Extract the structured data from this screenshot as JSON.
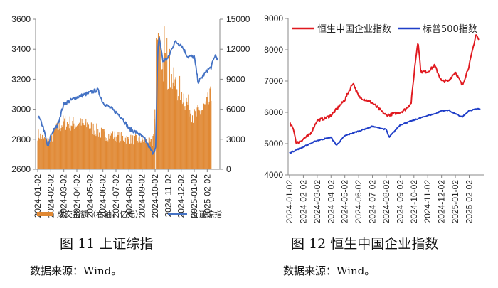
{
  "figures": [
    {
      "caption": "图 11 上证综指",
      "source": "数据来源：Wind。"
    },
    {
      "caption": "图 12 恒生中国企业指数",
      "source": "数据来源：Wind。"
    }
  ],
  "colors": {
    "bar": "#E08833",
    "blue": "#4472C4",
    "red": "#E0191F",
    "blue2": "#1F3EC8"
  },
  "chart_data": [
    {
      "type": "bar+line",
      "x_ticks": [
        "2024-01-02",
        "2024-02-02",
        "2024-03-02",
        "2024-04-02",
        "2024-05-02",
        "2024-06-02",
        "2024-07-02",
        "2024-08-02",
        "2024-09-02",
        "2024-10-02",
        "2024-11-02",
        "2024-12-02",
        "2025-01-02",
        "2025-02-02"
      ],
      "y_left": {
        "ticks": [
          "2600",
          "2800",
          "3000",
          "3200",
          "3400",
          "3600"
        ],
        "range": [
          2600,
          3600
        ]
      },
      "y_right": {
        "ticks": [
          "0",
          "3000",
          "6000",
          "9000",
          "12000",
          "15000"
        ],
        "range": [
          0,
          15000
        ]
      },
      "series": [
        {
          "name": "成交金额（右轴，亿元）",
          "kind": "bar",
          "axis": "right",
          "keypoints": [
            [
              0,
              3500
            ],
            [
              0.5,
              3000
            ],
            [
              1,
              2800
            ],
            [
              1.3,
              3800
            ],
            [
              2,
              4700
            ],
            [
              3,
              4500
            ],
            [
              4,
              4300
            ],
            [
              5,
              3500
            ],
            [
              6,
              3300
            ],
            [
              7,
              3000
            ],
            [
              8,
              2900
            ],
            [
              8.8,
              2600
            ],
            [
              9.05,
              7000
            ],
            [
              9.15,
              13500
            ],
            [
              9.6,
              10500
            ],
            [
              10,
              9500
            ],
            [
              10.5,
              8500
            ],
            [
              11,
              7800
            ],
            [
              11.5,
              6500
            ],
            [
              12,
              5200
            ],
            [
              13,
              6400
            ],
            [
              13.3,
              7200
            ]
          ]
        },
        {
          "name": "上证综指",
          "kind": "line",
          "axis": "left",
          "keypoints": [
            [
              0,
              2960
            ],
            [
              0.4,
              2885
            ],
            [
              0.8,
              2740
            ],
            [
              1,
              2830
            ],
            [
              1.5,
              2890
            ],
            [
              2,
              3035
            ],
            [
              3,
              3080
            ],
            [
              4,
              3110
            ],
            [
              4.6,
              3130
            ],
            [
              5,
              3045
            ],
            [
              6,
              2980
            ],
            [
              6.5,
              2940
            ],
            [
              7,
              2870
            ],
            [
              7.7,
              2840
            ],
            [
              8.2,
              2800
            ],
            [
              8.8,
              2710
            ],
            [
              9.05,
              2740
            ],
            [
              9.2,
              3370
            ],
            [
              9.3,
              3490
            ],
            [
              9.6,
              3320
            ],
            [
              10,
              3340
            ],
            [
              10.5,
              3450
            ],
            [
              11,
              3430
            ],
            [
              11.5,
              3350
            ],
            [
              12,
              3350
            ],
            [
              12.3,
              3180
            ],
            [
              13,
              3260
            ],
            [
              13.3,
              3280
            ],
            [
              13.6,
              3360
            ],
            [
              13.8,
              3335
            ]
          ]
        }
      ]
    },
    {
      "type": "line",
      "x_ticks": [
        "2024-01-02",
        "2024-02-02",
        "2024-03-02",
        "2024-04-02",
        "2024-05-02",
        "2024-06-02",
        "2024-07-02",
        "2024-08-02",
        "2024-09-02",
        "2024-10-02",
        "2024-11-02",
        "2024-12-02",
        "2025-01-02",
        "2025-02-02"
      ],
      "y": {
        "ticks": [
          "4000",
          "5000",
          "6000",
          "7000",
          "8000",
          "9000"
        ],
        "range": [
          4000,
          9000
        ]
      },
      "series": [
        {
          "name": "恒生中国企业指数",
          "color": "red",
          "keypoints": [
            [
              0,
              5650
            ],
            [
              0.3,
              5450
            ],
            [
              0.5,
              5000
            ],
            [
              1,
              5150
            ],
            [
              1.5,
              5300
            ],
            [
              2,
              5750
            ],
            [
              2.5,
              5800
            ],
            [
              3,
              5900
            ],
            [
              4,
              6400
            ],
            [
              4.6,
              6950
            ],
            [
              5,
              6500
            ],
            [
              6,
              6300
            ],
            [
              6.5,
              6100
            ],
            [
              7,
              5900
            ],
            [
              8,
              6000
            ],
            [
              8.4,
              6100
            ],
            [
              8.8,
              6300
            ],
            [
              9.1,
              7600
            ],
            [
              9.3,
              8300
            ],
            [
              9.5,
              7300
            ],
            [
              10,
              7300
            ],
            [
              10.5,
              7500
            ],
            [
              11,
              7000
            ],
            [
              11.5,
              7000
            ],
            [
              12,
              7300
            ],
            [
              12.5,
              6850
            ],
            [
              13,
              7500
            ],
            [
              13.5,
              8500
            ],
            [
              13.7,
              8300
            ]
          ]
        },
        {
          "name": "标普500指数",
          "color": "blue2",
          "keypoints": [
            [
              0,
              4700
            ],
            [
              1,
              4900
            ],
            [
              2,
              5100
            ],
            [
              3,
              5200
            ],
            [
              3.4,
              4950
            ],
            [
              4,
              5250
            ],
            [
              5,
              5400
            ],
            [
              6,
              5550
            ],
            [
              7,
              5450
            ],
            [
              7.2,
              5200
            ],
            [
              8,
              5600
            ],
            [
              9,
              5750
            ],
            [
              10,
              5900
            ],
            [
              10.5,
              5950
            ],
            [
              11,
              6050
            ],
            [
              11.5,
              6070
            ],
            [
              12,
              5950
            ],
            [
              12.5,
              5850
            ],
            [
              13,
              6050
            ],
            [
              13.5,
              6100
            ],
            [
              13.8,
              6120
            ]
          ]
        }
      ]
    }
  ]
}
